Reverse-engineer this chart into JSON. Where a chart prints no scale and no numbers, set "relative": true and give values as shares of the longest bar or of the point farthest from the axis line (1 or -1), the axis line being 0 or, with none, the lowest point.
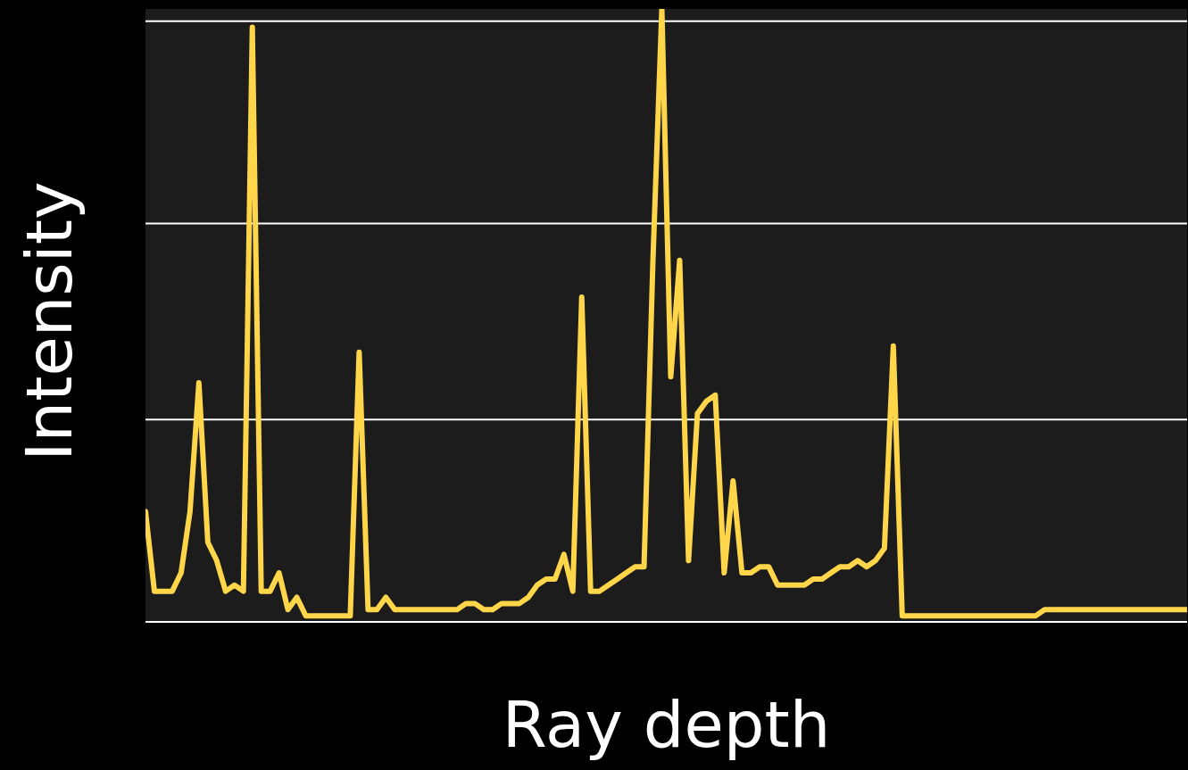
{
  "chart_data": {
    "type": "line",
    "relative": true,
    "xlabel": "Ray depth",
    "ylabel": "Intensity",
    "tick_labels": false,
    "ref_lines": [
      {
        "axis": "y",
        "value": 0.33,
        "color": "#ffffff"
      },
      {
        "axis": "y",
        "value": 0.65,
        "color": "#ffffff"
      },
      {
        "axis": "y",
        "value": 0.98,
        "color": "#ffffff"
      }
    ],
    "marker": "none",
    "line_style": "solid",
    "categories": [
      null,
      null,
      null,
      null,
      null,
      null,
      null,
      null,
      null,
      null,
      null,
      null,
      null,
      null,
      null,
      null,
      null,
      null,
      null,
      null,
      null,
      null,
      null,
      null,
      null,
      null,
      null,
      null,
      null,
      null,
      null,
      null,
      null,
      null,
      null,
      null,
      null,
      null,
      null,
      null,
      null,
      null,
      null,
      null,
      null,
      null,
      null,
      null,
      null,
      null,
      null,
      null,
      null,
      null,
      null,
      null,
      null,
      null,
      null,
      null,
      null,
      null,
      null,
      null,
      null,
      null,
      null,
      null,
      null,
      null,
      null,
      null,
      null,
      null,
      null,
      null,
      null,
      null,
      null,
      null,
      null,
      null,
      null,
      null,
      null,
      null,
      null,
      null,
      null,
      null,
      null,
      null,
      null,
      null,
      null,
      null,
      null,
      null,
      null,
      null,
      null,
      null,
      null,
      null,
      null,
      null,
      null,
      null,
      null,
      null,
      null,
      null,
      null,
      null,
      null,
      null,
      null,
      null
    ],
    "series": [
      {
        "color": "#ffd54a",
        "values": [
          0.18,
          0.05,
          0.05,
          0.05,
          0.08,
          0.18,
          0.39,
          0.13,
          0.1,
          0.05,
          0.06,
          0.05,
          0.97,
          0.05,
          0.05,
          0.08,
          0.02,
          0.04,
          0.01,
          0.01,
          0.01,
          0.01,
          0.01,
          0.01,
          0.44,
          0.02,
          0.02,
          0.04,
          0.02,
          0.02,
          0.02,
          0.02,
          0.02,
          0.02,
          0.02,
          0.02,
          0.03,
          0.03,
          0.02,
          0.02,
          0.03,
          0.03,
          0.03,
          0.04,
          0.06,
          0.07,
          0.07,
          0.11,
          0.05,
          0.53,
          0.05,
          0.05,
          0.06,
          0.07,
          0.08,
          0.09,
          0.09,
          0.59,
          1,
          0.4,
          0.59,
          0.1,
          0.34,
          0.36,
          0.37,
          0.08,
          0.23,
          0.08,
          0.08,
          0.09,
          0.09,
          0.06,
          0.06,
          0.06,
          0.06,
          0.07,
          0.07,
          0.08,
          0.09,
          0.09,
          0.1,
          0.09,
          0.1,
          0.12,
          0.45,
          0.01,
          0.01,
          0.01,
          0.01,
          0.01,
          0.01,
          0.01,
          0.01,
          0.01,
          0.01,
          0.01,
          0.01,
          0.01,
          0.01,
          0.01,
          0.01,
          0.02,
          0.02,
          0.02,
          0.02,
          0.02,
          0.02,
          0.02,
          0.02,
          0.02,
          0.02,
          0.02,
          0.02,
          0.02,
          0.02,
          0.02,
          0.02,
          0.02
        ]
      }
    ]
  }
}
